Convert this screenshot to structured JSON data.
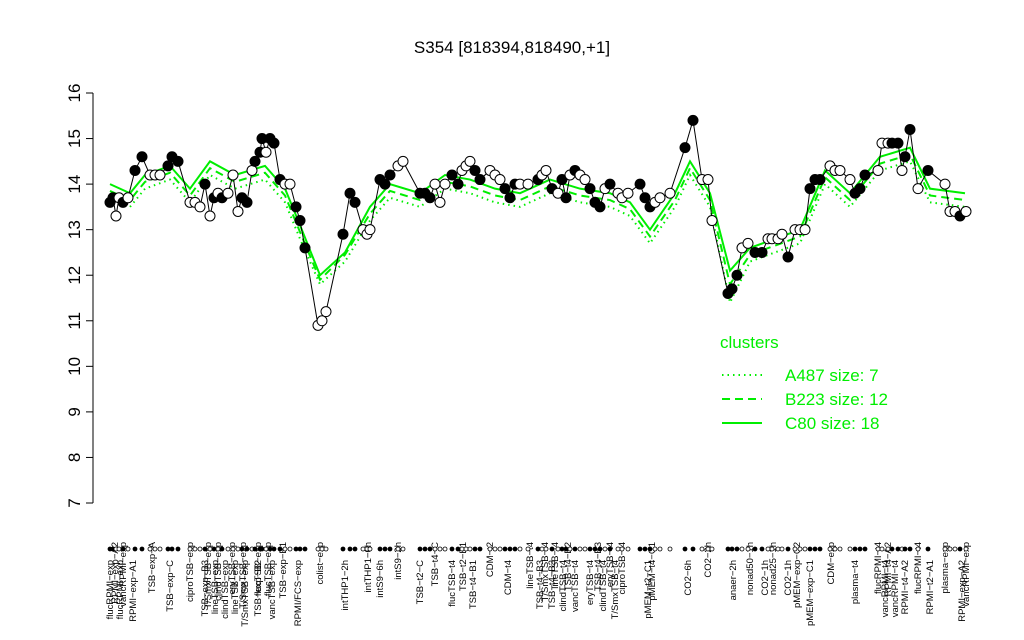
{
  "chart_data": {
    "type": "scatter",
    "title": "S354 [818394,818490,+1]",
    "ylim": [
      7,
      16
    ],
    "yticks": [
      7,
      8,
      9,
      10,
      11,
      12,
      13,
      14,
      15,
      16
    ],
    "xlim": [
      10.5,
      97.5
    ],
    "point_color": "#000000",
    "line_color": "#000000",
    "x": [
      11,
      11.3,
      11.6,
      11.9,
      12.3,
      12.8,
      13.5,
      14.2,
      15,
      15.5,
      16,
      16.8,
      17.2,
      17.8,
      19,
      19.5,
      20,
      20.5,
      21,
      21.4,
      21.8,
      22.2,
      22.8,
      23.3,
      23.8,
      24.2,
      24.7,
      25.2,
      25.5,
      26,
      26.2,
      26.6,
      27,
      27.4,
      28,
      28.5,
      29,
      29.6,
      30,
      30.5,
      31.8,
      32.2,
      32.6,
      34.3,
      35,
      35.5,
      36.3,
      36.7,
      37,
      38,
      38.5,
      39,
      39.8,
      40.3,
      42,
      42.5,
      43,
      43.5,
      44,
      44.5,
      45.2,
      45.8,
      46.2,
      46.6,
      47,
      47.5,
      48,
      49,
      49.5,
      50,
      50.5,
      51,
      51.5,
      52,
      52.8,
      53.8,
      54.2,
      54.6,
      55.2,
      55.8,
      56.2,
      56.6,
      57,
      57.5,
      58,
      58.5,
      59,
      59.5,
      60,
      60.5,
      61,
      61.8,
      62.2,
      62.8,
      64,
      64.5,
      65,
      65.5,
      66,
      67,
      68.5,
      69.3,
      70.2,
      70.8,
      71.2,
      72.8,
      73.2,
      73.7,
      74.2,
      74.8,
      75.5,
      76.2,
      76.8,
      77.2,
      77.8,
      78.2,
      78.8,
      79.5,
      80,
      80.5,
      81,
      81.5,
      82,
      83,
      83.5,
      84,
      85,
      85.5,
      86,
      86.5,
      87.8,
      88.2,
      88.8,
      89.2,
      89.8,
      90.2,
      90.5,
      91,
      91.8,
      92.8,
      94.5,
      95,
      95.5,
      96,
      96.6
    ],
    "values": [
      13.6,
      13.7,
      13.3,
      13.7,
      13.6,
      13.7,
      14.3,
      14.6,
      14.2,
      14.2,
      14.2,
      14.4,
      14.6,
      14.5,
      13.6,
      13.6,
      13.5,
      14.0,
      13.3,
      13.7,
      13.8,
      13.7,
      13.8,
      14.2,
      13.4,
      13.7,
      13.6,
      14.3,
      14.5,
      14.7,
      15.0,
      14.7,
      15.0,
      14.9,
      14.1,
      14.0,
      14.0,
      13.5,
      13.2,
      12.6,
      10.9,
      11.0,
      11.2,
      12.9,
      13.8,
      13.6,
      13.0,
      12.9,
      13.0,
      14.1,
      14.0,
      14.2,
      14.4,
      14.5,
      13.8,
      13.8,
      13.7,
      14.0,
      13.6,
      14.0,
      14.2,
      14.0,
      14.3,
      14.4,
      14.5,
      14.3,
      14.1,
      14.3,
      14.2,
      14.1,
      13.9,
      13.7,
      14.0,
      14.0,
      14.0,
      14.1,
      14.2,
      14.3,
      13.9,
      13.8,
      14.1,
      13.7,
      14.2,
      14.3,
      14.2,
      14.1,
      13.9,
      13.6,
      13.5,
      13.9,
      14.0,
      13.8,
      13.7,
      13.8,
      14.0,
      13.7,
      13.5,
      13.6,
      13.7,
      13.8,
      14.8,
      15.4,
      14.1,
      14.1,
      13.2,
      11.6,
      11.7,
      12.0,
      12.6,
      12.7,
      12.5,
      12.5,
      12.8,
      12.8,
      12.8,
      12.9,
      12.4,
      13.0,
      13.0,
      13.0,
      13.9,
      14.1,
      14.1,
      14.4,
      14.3,
      14.3,
      14.1,
      13.8,
      13.9,
      14.2,
      14.3,
      14.9,
      14.9,
      14.9,
      14.9,
      14.3,
      14.6,
      15.2,
      13.9,
      14.3,
      14.0,
      13.4,
      13.4,
      13.3,
      13.4
    ],
    "filled": [
      true,
      true,
      false,
      false,
      true,
      false,
      true,
      true,
      false,
      false,
      false,
      true,
      true,
      true,
      false,
      false,
      false,
      true,
      false,
      true,
      false,
      true,
      false,
      false,
      false,
      true,
      true,
      false,
      true,
      true,
      true,
      false,
      true,
      true,
      true,
      false,
      false,
      true,
      true,
      true,
      false,
      false,
      false,
      true,
      true,
      true,
      false,
      false,
      false,
      true,
      true,
      true,
      false,
      false,
      true,
      true,
      true,
      false,
      false,
      false,
      true,
      true,
      false,
      false,
      false,
      true,
      true,
      false,
      false,
      false,
      true,
      true,
      true,
      false,
      false,
      true,
      false,
      false,
      true,
      false,
      true,
      true,
      false,
      true,
      false,
      false,
      true,
      true,
      true,
      false,
      true,
      false,
      false,
      false,
      true,
      true,
      true,
      false,
      false,
      false,
      true,
      true,
      false,
      false,
      false,
      true,
      true,
      true,
      false,
      false,
      true,
      true,
      false,
      false,
      false,
      false,
      true,
      false,
      false,
      false,
      true,
      true,
      true,
      false,
      false,
      false,
      false,
      true,
      true,
      true,
      false,
      false,
      false,
      true,
      true,
      false,
      true,
      true,
      false,
      true,
      false,
      false,
      false,
      true,
      false
    ],
    "clusters_title": "clusters",
    "cluster_color": "#00ee00",
    "series": [
      {
        "name": "A487 size: 7",
        "dash": "dotted",
        "x": [
          11,
          13,
          14.5,
          17,
          19,
          21,
          23.5,
          26.5,
          28.5,
          30,
          32,
          34.5,
          37,
          39,
          42,
          44.5,
          47,
          49.5,
          52,
          55,
          58,
          61,
          63,
          65,
          67.5,
          69,
          71,
          73,
          75,
          77.5,
          80,
          82.5,
          85,
          88,
          91,
          93,
          96.5
        ],
        "values": [
          13.7,
          13.5,
          13.9,
          14.1,
          13.6,
          14.2,
          13.9,
          14.1,
          13.6,
          12.8,
          11.8,
          12.3,
          13.2,
          13.7,
          13.5,
          13.9,
          13.8,
          13.6,
          13.5,
          13.8,
          13.6,
          13.5,
          13.3,
          12.7,
          13.5,
          14.2,
          13.5,
          11.4,
          12.3,
          12.5,
          12.7,
          14.0,
          13.5,
          14.3,
          14.5,
          13.6,
          13.5
        ]
      },
      {
        "name": "B223 size: 12",
        "dash": "dashed",
        "x": [
          11,
          13,
          14.5,
          17,
          19,
          21,
          23.5,
          26.5,
          28.5,
          30,
          32,
          34.5,
          37,
          39,
          42,
          44.5,
          47,
          49.5,
          52,
          55,
          58,
          61,
          63,
          65,
          67.5,
          69,
          71,
          73,
          75,
          77.5,
          80,
          82.5,
          85,
          88,
          91,
          93,
          96.5
        ],
        "values": [
          13.85,
          13.65,
          14.05,
          14.25,
          13.75,
          14.35,
          14.05,
          14.25,
          13.75,
          12.95,
          11.9,
          12.45,
          13.35,
          13.85,
          13.65,
          14.05,
          13.95,
          13.75,
          13.65,
          13.95,
          13.75,
          13.65,
          13.45,
          12.85,
          13.65,
          14.35,
          13.65,
          11.8,
          12.45,
          12.65,
          12.85,
          14.15,
          13.65,
          14.45,
          14.65,
          13.75,
          13.65
        ]
      },
      {
        "name": "C80 size: 18",
        "dash": "solid",
        "x": [
          11,
          13,
          14.5,
          17,
          19,
          21,
          23.5,
          26.5,
          28.5,
          30,
          32,
          34.5,
          37,
          39,
          42,
          44.5,
          47,
          49.5,
          52,
          55,
          58,
          61,
          63,
          65,
          67.5,
          69,
          71,
          73,
          75,
          77.5,
          80,
          82.5,
          85,
          88,
          91,
          93,
          96.5
        ],
        "values": [
          14.0,
          13.8,
          14.2,
          14.4,
          13.9,
          14.5,
          14.2,
          14.4,
          13.9,
          13.1,
          12.0,
          12.5,
          13.5,
          14.0,
          13.8,
          14.2,
          14.1,
          13.9,
          13.8,
          14.1,
          13.9,
          13.8,
          13.6,
          13.0,
          13.8,
          14.5,
          13.8,
          12.1,
          12.6,
          12.8,
          13.0,
          14.3,
          13.8,
          14.6,
          14.8,
          13.9,
          13.8
        ]
      }
    ],
    "xticks_top": [
      {
        "value": 11.5,
        "label": "RPMI−exp−A2"
      },
      {
        "value": 12.3,
        "label": "vancRPMI−exp"
      },
      {
        "value": 15.2,
        "label": "TSB−exp−A"
      },
      {
        "value": 19,
        "label": "ciproTSB−exp"
      },
      {
        "value": 20.8,
        "label": "T/SmxTSB−exp"
      },
      {
        "value": 21.8,
        "label": "clindTSB−exp"
      },
      {
        "value": 23.2,
        "label": "eryTSB−exp"
      },
      {
        "value": 24.3,
        "label": "T/SmxTSB−exp"
      },
      {
        "value": 25.8,
        "label": "flucTSB−exp"
      },
      {
        "value": 26.8,
        "label": "flucTSB−exp"
      },
      {
        "value": 28.3,
        "label": "TSB−exp−B1"
      },
      {
        "value": 32,
        "label": "colist−exp"
      },
      {
        "value": 36.8,
        "label": "intTHP1−6h"
      },
      {
        "value": 39.8,
        "label": "intS9−2h"
      },
      {
        "value": 43.5,
        "label": "TSB−t4−C"
      },
      {
        "value": 46.3,
        "label": "TSB−t2−B1"
      },
      {
        "value": 49,
        "label": "CDM−t2"
      },
      {
        "value": 53,
        "label": "lineTSB−t4"
      },
      {
        "value": 54.5,
        "label": "T/SmxTSB−t4"
      },
      {
        "value": 55.5,
        "label": "lineTSB−t4"
      },
      {
        "value": 56.8,
        "label": "TSB−t4−B2"
      },
      {
        "value": 59.8,
        "label": "TSB−t4−B3"
      },
      {
        "value": 61,
        "label": "eryTSB−t4"
      },
      {
        "value": 62.2,
        "label": "ciproTSB−t4"
      },
      {
        "value": 65.2,
        "label": "pMEM−t4−C1"
      },
      {
        "value": 70.8,
        "label": "CO2−2h"
      },
      {
        "value": 75,
        "label": "nonad50−1h"
      },
      {
        "value": 77.3,
        "label": "nonad25−1h"
      },
      {
        "value": 79.7,
        "label": "pMEM−exp−C2"
      },
      {
        "value": 83.1,
        "label": "CDM−exp"
      },
      {
        "value": 87.8,
        "label": "flucRPMI−t4"
      },
      {
        "value": 88.8,
        "label": "RPMI−t4−A2"
      },
      {
        "value": 91.8,
        "label": "flucRPMI−t4"
      },
      {
        "value": 94.5,
        "label": "plasma−exp"
      },
      {
        "value": 96.6,
        "label": "vancRPMI−exp"
      }
    ],
    "xticks_bottom": [
      {
        "value": 11,
        "label": "flucRPMI−exp"
      },
      {
        "value": 12,
        "label": "flucRPMI−exp"
      },
      {
        "value": 13.3,
        "label": "RPMI−exp−A1"
      },
      {
        "value": 17,
        "label": "TSB−exp−C"
      },
      {
        "value": 20.5,
        "label": "TSB−exp−B3"
      },
      {
        "value": 21.5,
        "label": "lineTSB−exp"
      },
      {
        "value": 22.5,
        "label": "clindTSB−exp"
      },
      {
        "value": 23.5,
        "label": "lineTSB−exp"
      },
      {
        "value": 24.5,
        "label": "T/SmxTSB−exp"
      },
      {
        "value": 25.8,
        "label": "TSB−exp−B2"
      },
      {
        "value": 27.2,
        "label": "vancTSB−exp"
      },
      {
        "value": 29.8,
        "label": "RPMI/FCS−exp"
      },
      {
        "value": 34.5,
        "label": "intTHP1−2h"
      },
      {
        "value": 38,
        "label": "intS9−6h"
      },
      {
        "value": 42,
        "label": "TSB−t2−C"
      },
      {
        "value": 45.2,
        "label": "flucTSB−t4"
      },
      {
        "value": 47.3,
        "label": "TSB−t4−B1"
      },
      {
        "value": 50.8,
        "label": "CDM−t4"
      },
      {
        "value": 54,
        "label": "TSB−t4−B3"
      },
      {
        "value": 55.2,
        "label": "TSB−t4−B3"
      },
      {
        "value": 56.3,
        "label": "clindTSB−t4"
      },
      {
        "value": 57.5,
        "label": "vancTSB−t4"
      },
      {
        "value": 59,
        "label": "eryTSB−t4"
      },
      {
        "value": 60.3,
        "label": "clindTSB−t4"
      },
      {
        "value": 61.5,
        "label": "T/SmxTSB−t4"
      },
      {
        "value": 64.8,
        "label": "pMEM−t2−C1"
      },
      {
        "value": 68.8,
        "label": "CO2−6h"
      },
      {
        "value": 73.3,
        "label": "anaer−2h"
      },
      {
        "value": 76.5,
        "label": "CO2−1h"
      },
      {
        "value": 78.8,
        "label": "CO2−1h"
      },
      {
        "value": 81,
        "label": "pMEM−exp−C1"
      },
      {
        "value": 85.5,
        "label": "plasma−t4"
      },
      {
        "value": 88.5,
        "label": "vancRPMI−t4"
      },
      {
        "value": 89.5,
        "label": "vancRPMI−t4"
      },
      {
        "value": 90.5,
        "label": "RPMI−t4−A2"
      },
      {
        "value": 93,
        "label": "RPMI−t2−A1"
      },
      {
        "value": 96.2,
        "label": "RPMI−exp−A2"
      }
    ]
  }
}
